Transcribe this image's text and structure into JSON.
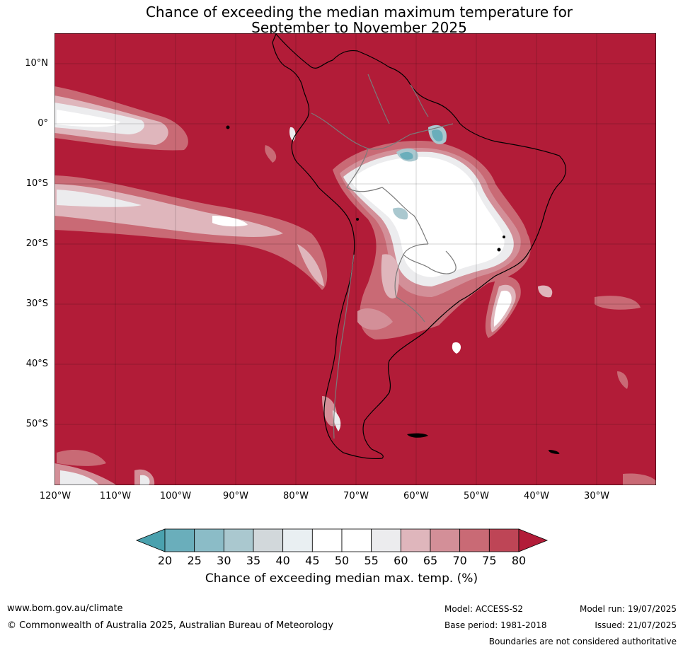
{
  "title": {
    "line1": "Chance of exceeding the median maximum temperature for",
    "line2": "September to November 2025"
  },
  "lat_labels": [
    "10°N",
    "0°",
    "10°S",
    "20°S",
    "30°S",
    "40°S",
    "50°S"
  ],
  "lon_labels": [
    "120°W",
    "110°W",
    "100°W",
    "90°W",
    "80°W",
    "70°W",
    "60°W",
    "50°W",
    "40°W",
    "30°W"
  ],
  "colorbar": {
    "ticks": [
      "20",
      "25",
      "30",
      "35",
      "40",
      "45",
      "50",
      "55",
      "60",
      "65",
      "70",
      "75",
      "80"
    ],
    "colors": [
      "#4aa1ae",
      "#6aaebb",
      "#8bbcc7",
      "#aac8cf",
      "#d2d8db",
      "#e9eff2",
      "#ffffff",
      "#ffffff",
      "#ececee",
      "#dfb6bc",
      "#d38f98",
      "#c96a75",
      "#be4556",
      "#b21c38"
    ],
    "label": "Chance of exceeding median max. temp. (%)"
  },
  "map_colors": {
    "ocean_high": "#b21c38",
    "land_border": "#7a7a7a",
    "coast": "#000000"
  },
  "footer": {
    "url": "www.bom.gov.au/climate",
    "copyright": "© Commonwealth of Australia 2025, Australian Bureau of Meteorology",
    "model": "Model: ACCESS-S2",
    "base_period": "Base period: 1981-2018",
    "model_run": "Model run: 19/07/2025",
    "issued": "Issued: 21/07/2025",
    "disclaimer": "Boundaries are not considered authoritative"
  }
}
